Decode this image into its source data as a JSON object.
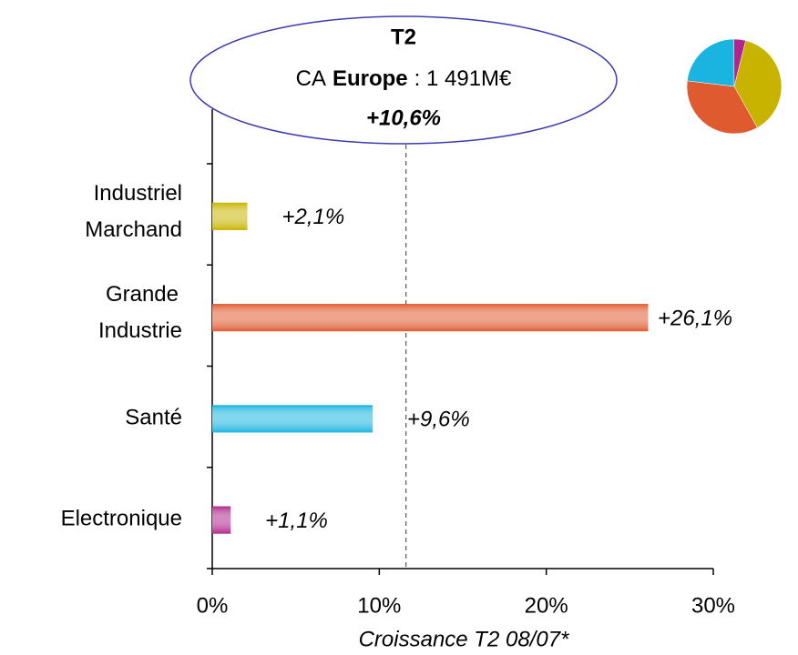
{
  "chart_data": [
    {
      "type": "hbar",
      "title_lines": {
        "first": "T2",
        "second": [
          "CA",
          "Europe",
          ": 1 491M€"
        ],
        "third": "+10,6%"
      },
      "categories": [
        [
          "Industriel",
          "Marchand"
        ],
        [
          "Grande",
          "Industrie"
        ],
        [
          "Santé"
        ],
        [
          "Electronique"
        ]
      ],
      "values": [
        2.1,
        26.1,
        9.6,
        1.1
      ],
      "value_labels": [
        "+2,1%",
        "+26,1%",
        "+9,6%",
        "+1,1%"
      ],
      "colors": [
        "#c8b400",
        "#e05a30",
        "#1ab4e0",
        "#b0268c"
      ],
      "reference_line": 11.6,
      "xlim": [
        0,
        30
      ],
      "xticks": [
        {
          "value": 0,
          "label": "0%"
        },
        {
          "value": 10,
          "label": "10%"
        },
        {
          "value": 20,
          "label": "20%"
        },
        {
          "value": 30,
          "label": "30%"
        }
      ],
      "x_label": "Croissance T2 08/07*"
    },
    {
      "type": "pie",
      "values": [
        38,
        35,
        23,
        4
      ],
      "colors": [
        "#c8b400",
        "#e05a30",
        "#1ab4e0",
        "#b0268c"
      ]
    }
  ]
}
